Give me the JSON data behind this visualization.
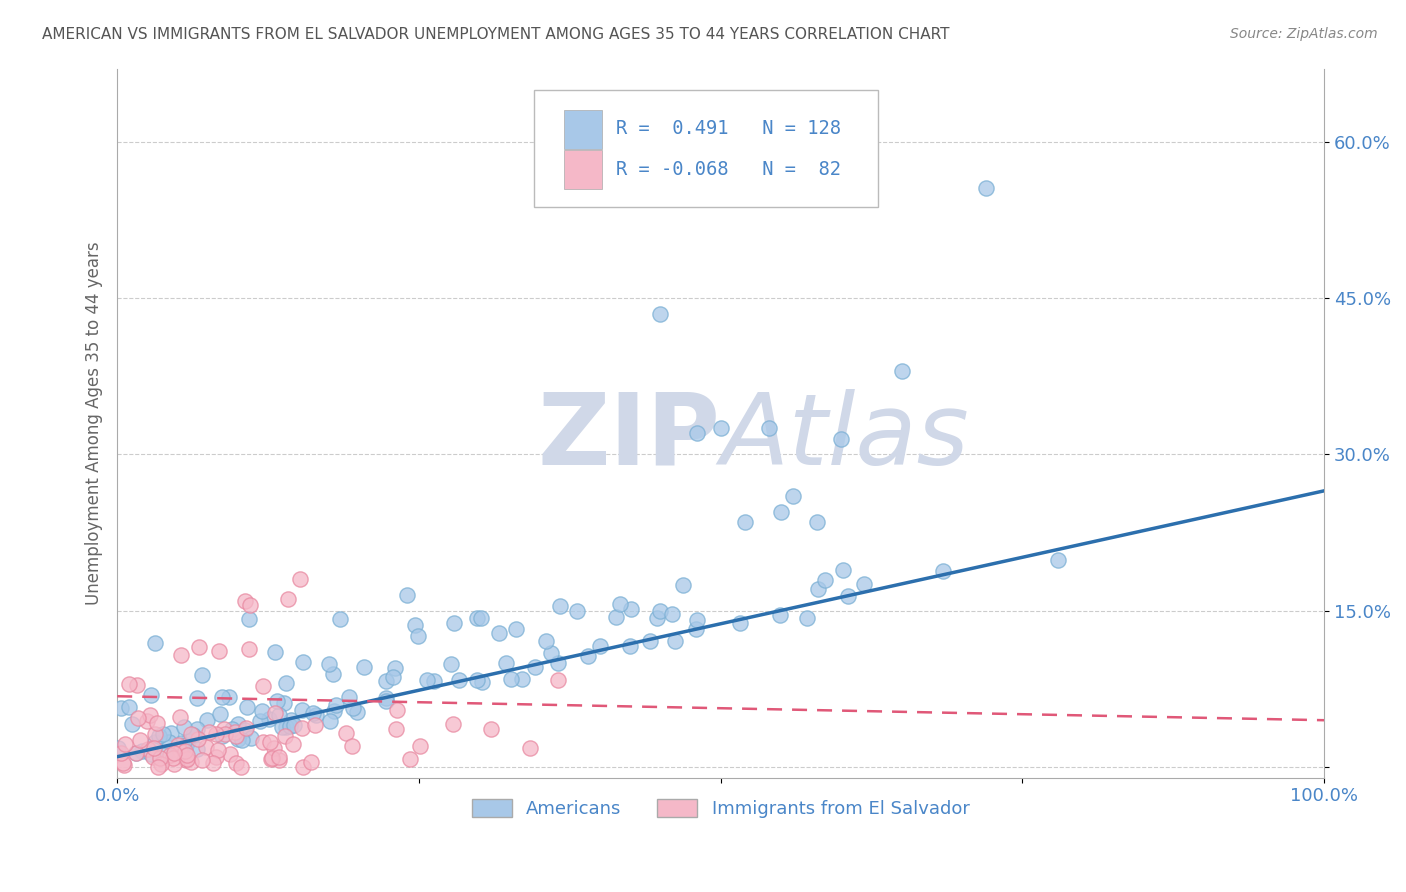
{
  "title": "AMERICAN VS IMMIGRANTS FROM EL SALVADOR UNEMPLOYMENT AMONG AGES 35 TO 44 YEARS CORRELATION CHART",
  "source": "Source: ZipAtlas.com",
  "ylabel": "Unemployment Among Ages 35 to 44 years",
  "xlim": [
    0,
    1.0
  ],
  "ylim": [
    -0.01,
    0.67
  ],
  "x_tick_vals": [
    0.0,
    0.25,
    0.5,
    0.75,
    1.0
  ],
  "x_tick_labels": [
    "0.0%",
    "",
    "",
    "",
    "100.0%"
  ],
  "y_tick_vals": [
    0.0,
    0.15,
    0.3,
    0.45,
    0.6
  ],
  "y_tick_labels": [
    "",
    "15.0%",
    "30.0%",
    "45.0%",
    "60.0%"
  ],
  "americans_R": 0.491,
  "americans_N": 128,
  "immigrants_R": -0.068,
  "immigrants_N": 82,
  "americans_color": "#a8c8e8",
  "americans_edge_color": "#7aafd4",
  "americans_line_color": "#2c6fad",
  "immigrants_color": "#f5b8c8",
  "immigrants_edge_color": "#e888a0",
  "immigrants_line_color": "#e05878",
  "watermark_text": "ZIPAtlas",
  "watermark_color": "#d0d8e8",
  "title_color": "#555555",
  "label_color": "#4a86c8",
  "grid_color": "#cccccc",
  "legend_r_n_color": "#4a86c8"
}
